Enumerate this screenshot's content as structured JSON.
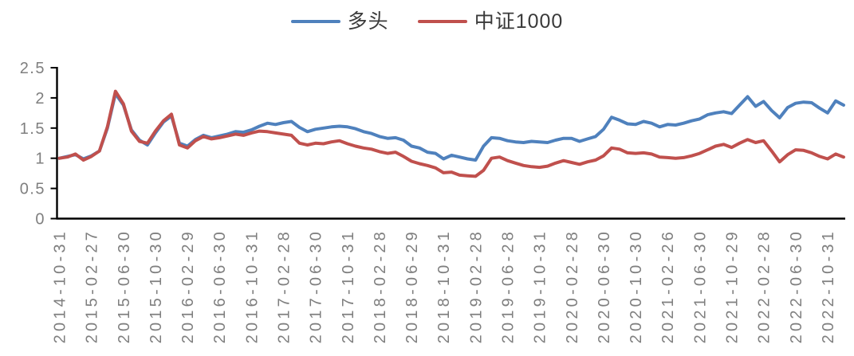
{
  "chart_data": {
    "type": "line",
    "title": "",
    "xlabel": "",
    "ylabel": "",
    "grid": false,
    "legend_position": "top-center",
    "ylim": [
      0,
      2.5
    ],
    "y_tick_labels": [
      "0",
      "0.5",
      "1",
      "1.5",
      "2",
      "2.5"
    ],
    "y_tick_values": [
      0,
      0.5,
      1,
      1.5,
      2,
      2.5
    ],
    "x_tick_every": 4,
    "x_tick_labels": [
      "2014-10-31",
      "2015-02-27",
      "2015-06-30",
      "2015-10-30",
      "2016-02-29",
      "2016-06-30",
      "2016-10-31",
      "2017-02-28",
      "2017-06-30",
      "2017-10-31",
      "2018-02-28",
      "2018-06-29",
      "2018-10-31",
      "2019-02-28",
      "2019-06-28",
      "2019-10-31",
      "2020-02-28",
      "2020-06-30",
      "2020-10-30",
      "2021-02-26",
      "2021-06-30",
      "2021-10-29",
      "2022-02-28",
      "2022-06-30",
      "2022-10-31"
    ],
    "series": [
      {
        "name": "多头",
        "color": "#4f81bd",
        "values": [
          1.0,
          1.03,
          1.06,
          0.99,
          1.04,
          1.12,
          1.5,
          2.07,
          1.88,
          1.47,
          1.3,
          1.22,
          1.42,
          1.6,
          1.7,
          1.25,
          1.2,
          1.31,
          1.38,
          1.34,
          1.37,
          1.4,
          1.44,
          1.43,
          1.47,
          1.53,
          1.58,
          1.56,
          1.59,
          1.61,
          1.51,
          1.44,
          1.48,
          1.5,
          1.52,
          1.53,
          1.52,
          1.49,
          1.44,
          1.41,
          1.36,
          1.33,
          1.34,
          1.3,
          1.2,
          1.17,
          1.1,
          1.08,
          0.99,
          1.05,
          1.02,
          0.99,
          0.97,
          1.2,
          1.34,
          1.33,
          1.29,
          1.27,
          1.26,
          1.28,
          1.27,
          1.26,
          1.3,
          1.33,
          1.33,
          1.28,
          1.32,
          1.36,
          1.48,
          1.68,
          1.63,
          1.57,
          1.56,
          1.61,
          1.58,
          1.52,
          1.56,
          1.55,
          1.58,
          1.62,
          1.65,
          1.72,
          1.75,
          1.77,
          1.74,
          1.88,
          2.02,
          1.86,
          1.94,
          1.79,
          1.67,
          1.84,
          1.91,
          1.93,
          1.92,
          1.83,
          1.75,
          1.95,
          1.88
        ]
      },
      {
        "name": "中证1000",
        "color": "#c0504d",
        "values": [
          1.0,
          1.02,
          1.07,
          0.97,
          1.03,
          1.12,
          1.52,
          2.11,
          1.9,
          1.45,
          1.28,
          1.25,
          1.45,
          1.62,
          1.73,
          1.22,
          1.17,
          1.29,
          1.36,
          1.32,
          1.34,
          1.37,
          1.4,
          1.38,
          1.42,
          1.45,
          1.44,
          1.42,
          1.4,
          1.38,
          1.25,
          1.22,
          1.25,
          1.24,
          1.27,
          1.29,
          1.24,
          1.2,
          1.17,
          1.15,
          1.11,
          1.08,
          1.1,
          1.03,
          0.95,
          0.91,
          0.88,
          0.84,
          0.76,
          0.77,
          0.72,
          0.71,
          0.7,
          0.8,
          1.0,
          1.02,
          0.96,
          0.92,
          0.88,
          0.86,
          0.85,
          0.87,
          0.92,
          0.96,
          0.93,
          0.9,
          0.94,
          0.97,
          1.04,
          1.17,
          1.15,
          1.09,
          1.08,
          1.09,
          1.07,
          1.02,
          1.01,
          1.0,
          1.01,
          1.04,
          1.08,
          1.14,
          1.2,
          1.23,
          1.18,
          1.25,
          1.31,
          1.26,
          1.29,
          1.12,
          0.94,
          1.06,
          1.14,
          1.13,
          1.09,
          1.03,
          0.99,
          1.07,
          1.02
        ]
      }
    ]
  },
  "style": {
    "axis_color": "#000000",
    "tick_label_color": "#7f7f7f",
    "legend_text_color": "#3a3a3a",
    "background": "#ffffff"
  }
}
